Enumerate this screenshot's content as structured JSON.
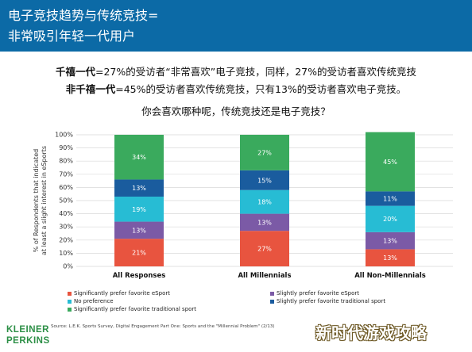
{
  "header": {
    "line1": "电子竞技趋势与传统竞技=",
    "line2": "非常吸引年轻一代用户"
  },
  "intro": {
    "line1_bold": "千禧一代",
    "line1_rest": "=27%的受访者“非常喜欢”电子竞技，同样，27%的受访者喜欢传统竞技",
    "line2_bold": "非千禧一代",
    "line2_rest": "=45%的受访者喜欢传统竞技，只有13%的受访者喜欢电子竞技。",
    "question": "你会喜欢哪种呢，传统竞技还是电子竞技？"
  },
  "chart_data": {
    "type": "bar",
    "stacked": true,
    "ylabel": "% of Respondents that indicated at least a slight interest in eSports",
    "ylim": [
      0,
      100
    ],
    "yticks": [
      "0%",
      "10%",
      "20%",
      "30%",
      "40%",
      "50%",
      "60%",
      "70%",
      "80%",
      "90%",
      "100%"
    ],
    "categories": [
      "All Responses",
      "All Millennials",
      "All Non-Millennials"
    ],
    "series": [
      {
        "name": "Significantly prefer favorite eSport",
        "color": "#e8543f",
        "values": [
          21,
          27,
          13
        ]
      },
      {
        "name": "Slightly prefer favorite eSport",
        "color": "#7b5aa6",
        "values": [
          13,
          13,
          13
        ]
      },
      {
        "name": "No preference",
        "color": "#27bcd4",
        "values": [
          19,
          18,
          20
        ]
      },
      {
        "name": "Slightly prefer favorite traditional sport",
        "color": "#1a5c9e",
        "values": [
          13,
          15,
          11
        ]
      },
      {
        "name": "Significantly prefer favorite traditional sport",
        "color": "#3aaa5d",
        "values": [
          34,
          27,
          45
        ]
      }
    ],
    "grid": true,
    "legend_position": "bottom"
  },
  "legend": {
    "items": [
      {
        "label": "Significantly prefer favorite eSport",
        "color": "#e8543f"
      },
      {
        "label": "Slightly prefer favorite eSport",
        "color": "#7b5aa6"
      },
      {
        "label": "No preference",
        "color": "#27bcd4"
      },
      {
        "label": "Slightly prefer favorite traditional sport",
        "color": "#1a5c9e"
      },
      {
        "label": "Significantly prefer favorite traditional sport",
        "color": "#3aaa5d"
      }
    ]
  },
  "footer": {
    "source": "Source: L.E.K. Sports Survey, Digital Engagement Part One: Sports and the \"Millennial Problem\" (2/13)",
    "logo_line1": "KLEINER",
    "logo_line2": "PERKINS",
    "watermark": "新时代游戏攻略"
  }
}
